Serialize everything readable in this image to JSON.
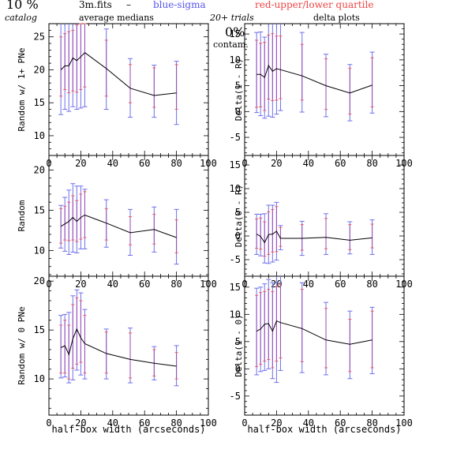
{
  "header": {
    "percent": "10 %",
    "catalog": "catalog",
    "file": "3m.fits",
    "dash": "–",
    "medians": "average medians",
    "blue_label": "blue-sigma",
    "red_label": "red-upper/lower quartile",
    "trials": "20+ trials",
    "delta": "delta plots",
    "contam_pct": "0%",
    "contam": "contam."
  },
  "colors": {
    "median_line": "#000000",
    "sigma": "#6f6fee",
    "quartile": "#f05a5a",
    "quartile_overlap": "#9b4fb5",
    "axis": "#000000"
  },
  "xlabel": "half-box width (arcseconds)",
  "chart_data": [
    {
      "type": "line",
      "ylabel": "Random w/ 1+ PNe",
      "xlim": [
        0,
        100
      ],
      "ylim": [
        7,
        27
      ],
      "yticks": [
        10,
        15,
        20,
        25
      ],
      "x": [
        7.5,
        10,
        12.5,
        15,
        17.5,
        20,
        22.5,
        36,
        51,
        66,
        80
      ],
      "y": [
        20,
        20.6,
        20.6,
        21.8,
        21.4,
        22,
        22.6,
        20.2,
        17.2,
        16.1,
        16.5
      ],
      "sigma_low": [
        13.2,
        14,
        13.7,
        14.4,
        14,
        14.2,
        14.4,
        14,
        12.8,
        12.8,
        11.7
      ],
      "sigma_high": [
        27.1,
        27.3,
        27.5,
        28.4,
        28.6,
        29.6,
        30.6,
        26.2,
        21.7,
        20.7,
        21.3
      ],
      "q_low": [
        16,
        17,
        16.5,
        16.8,
        16.6,
        17,
        17.4,
        16,
        15,
        14.3,
        14
      ],
      "q_high": [
        25,
        25.5,
        25.8,
        26,
        26.8,
        27,
        27.4,
        24.5,
        20.8,
        20.3,
        20.8
      ]
    },
    {
      "type": "line",
      "ylabel": "Delta(1 - R)",
      "xlim": [
        0,
        100
      ],
      "ylim": [
        -8.5,
        17
      ],
      "yticks": [
        -5,
        0,
        5,
        10,
        15
      ],
      "x": [
        7.5,
        10,
        12.5,
        15,
        17.5,
        20,
        22.5,
        36,
        51,
        66,
        80
      ],
      "y": [
        7.2,
        7.2,
        6.6,
        8.9,
        7.8,
        8.3,
        8.1,
        6.9,
        5,
        3.6,
        5.1
      ],
      "sigma_low": [
        -0.2,
        -0.8,
        -1.3,
        -0.9,
        -1.1,
        -0.5,
        0.2,
        -0.1,
        -1,
        -1.8,
        -0.3
      ],
      "sigma_high": [
        15.3,
        15.4,
        14.4,
        18.9,
        20,
        20.6,
        20.3,
        15.3,
        11.1,
        9.1,
        11.5
      ],
      "q_low": [
        0.8,
        0.9,
        0.2,
        2.4,
        2.1,
        2.2,
        2.5,
        2.2,
        0.4,
        -0.5,
        0.9
      ],
      "q_high": [
        13.8,
        13.2,
        13.4,
        14.8,
        15.1,
        14.6,
        14.6,
        13,
        10.2,
        8.4,
        10.4
      ]
    },
    {
      "type": "line",
      "ylabel": "Random",
      "xlim": [
        0,
        100
      ],
      "ylim": [
        6.8,
        21.8
      ],
      "yticks": [
        10,
        15,
        20
      ],
      "x": [
        7.5,
        10,
        12.5,
        15,
        17.5,
        20,
        22.5,
        36,
        51,
        66,
        80
      ],
      "y": [
        13,
        13.3,
        13.6,
        14.1,
        13.6,
        14.1,
        14.4,
        13.4,
        12.2,
        12.6,
        11.6
      ],
      "sigma_low": [
        10.3,
        9.9,
        9.5,
        9.8,
        9.7,
        10.2,
        10.2,
        10.4,
        9.4,
        9.8,
        8.3
      ],
      "sigma_high": [
        15.6,
        16.6,
        17.5,
        18.3,
        18,
        18,
        17.6,
        16.3,
        15.1,
        15.4,
        15.1
      ],
      "q_low": [
        10.9,
        11.3,
        11.2,
        11.3,
        11.1,
        11.4,
        11.6,
        11.3,
        10.7,
        10.8,
        9.7
      ],
      "q_high": [
        15.2,
        15.5,
        16,
        16.8,
        16.2,
        17,
        17.3,
        15.2,
        14.2,
        14.5,
        13.8
      ]
    },
    {
      "type": "line",
      "ylabel": "Delta(0 - R)",
      "xlim": [
        0,
        100
      ],
      "ylim": [
        -8.5,
        17
      ],
      "yticks": [
        -5,
        0,
        5,
        10,
        15
      ],
      "x": [
        7.5,
        10,
        12.5,
        15,
        17.5,
        20,
        22.5,
        36,
        51,
        66,
        80
      ],
      "y": [
        0.4,
        -0.1,
        -1.4,
        0.3,
        0.4,
        1,
        -0.5,
        -0.5,
        -0.3,
        -0.9,
        -0.4
      ],
      "sigma_low": [
        -3.9,
        -4.2,
        -5.7,
        -5.8,
        -5.5,
        -5.1,
        -2.9,
        -4.1,
        -3.9,
        -3.8,
        -3.9
      ],
      "sigma_high": [
        4.6,
        4.6,
        4.7,
        6.5,
        6.5,
        7.1,
        2.2,
        3.1,
        4.7,
        3,
        3.4
      ],
      "q_low": [
        -2.6,
        -2.8,
        -4.3,
        -3.9,
        -3.4,
        -3.3,
        -2.2,
        -3,
        -2.7,
        -2.9,
        -2.5
      ],
      "q_high": [
        3.6,
        3.8,
        3,
        5.1,
        5.6,
        6.2,
        1.8,
        2.4,
        3.7,
        2.4,
        2.5
      ]
    },
    {
      "type": "line",
      "ylabel": "Random w/ 0 PNe",
      "xlim": [
        0,
        100
      ],
      "ylim": [
        6.3,
        20.5
      ],
      "yticks": [
        10,
        15,
        20
      ],
      "x": [
        7.5,
        10,
        12.5,
        15,
        17.5,
        20,
        22.5,
        36,
        51,
        66,
        80
      ],
      "y": [
        13.2,
        13.4,
        12.5,
        14.1,
        15.1,
        14.2,
        13.6,
        12.6,
        12,
        11.6,
        11.3
      ],
      "sigma_low": [
        10.1,
        10.2,
        9.6,
        9.9,
        10.9,
        10.4,
        10,
        10,
        9.6,
        9.9,
        9.3
      ],
      "sigma_high": [
        16.5,
        16.6,
        16.8,
        18.5,
        19.1,
        18.8,
        17.1,
        15.1,
        15.2,
        13.3,
        13.4
      ],
      "q_low": [
        10.6,
        10.6,
        10,
        11.1,
        11.5,
        11.7,
        10.6,
        10.6,
        10.1,
        10.3,
        10
      ],
      "q_high": [
        15.5,
        16,
        15.5,
        17.6,
        18.3,
        18,
        16.5,
        14.8,
        14.7,
        13,
        12.7
      ]
    },
    {
      "type": "line",
      "ylabel": "Delta(1 - 0)",
      "xlim": [
        0,
        100
      ],
      "ylim": [
        -8.5,
        17
      ],
      "yticks": [
        -5,
        0,
        5,
        10,
        15
      ],
      "x": [
        7.5,
        10,
        12.5,
        15,
        17.5,
        20,
        22.5,
        36,
        51,
        66,
        80
      ],
      "y": [
        6.9,
        7.3,
        8.2,
        8.3,
        6.9,
        8.8,
        8.5,
        7.4,
        5.3,
        4.5,
        5.3
      ],
      "sigma_low": [
        -1.1,
        -0.5,
        -0.3,
        0,
        -1.8,
        -2.5,
        -0.3,
        -0.7,
        -1.1,
        -1.8,
        -0.9
      ],
      "sigma_high": [
        14.8,
        15,
        15.6,
        16.4,
        15.8,
        18.4,
        18.2,
        15.8,
        12.2,
        10.6,
        11.3
      ],
      "q_low": [
        0.4,
        0.8,
        1.4,
        1.7,
        0.2,
        1.4,
        2,
        1.3,
        0.2,
        -0.5,
        0.2
      ],
      "q_high": [
        13.5,
        14,
        14.2,
        14.6,
        14.2,
        15.1,
        15.5,
        14.6,
        11.1,
        9.1,
        10.6
      ]
    }
  ]
}
